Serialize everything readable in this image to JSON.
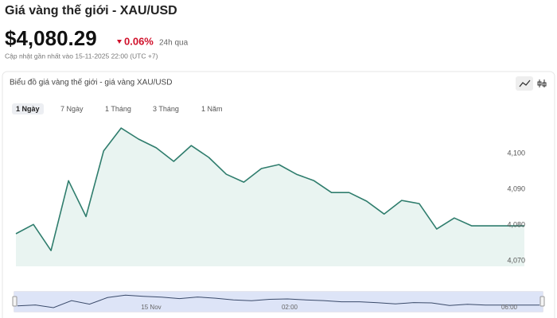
{
  "header": {
    "title": "Giá vàng thế giới - XAU/USD",
    "price": "$4,080.29",
    "change": "0.06%",
    "change_period": "24h qua",
    "updated": "Cập nhật gần nhất vào 15-11-2025 22:00 (UTC +7)"
  },
  "panel": {
    "title": "Biểu đồ giá vàng thế giới - giá vàng XAU/USD",
    "tabs": [
      "1 Ngày",
      "7 Ngày",
      "1 Tháng",
      "3 Tháng",
      "1 Năm"
    ]
  },
  "navigator": {
    "labels": [
      "15 Nov",
      "02:00",
      "06:00"
    ]
  },
  "chart_data": {
    "type": "area",
    "categories": [
      null,
      null,
      null,
      null,
      null,
      null,
      null,
      null,
      null,
      null,
      null,
      null,
      null,
      null,
      null,
      null,
      null,
      null,
      null,
      null,
      null,
      null,
      null,
      null,
      null,
      null,
      null,
      null,
      null,
      null
    ],
    "values": [
      4077.6,
      4080.2,
      4072.9,
      4092.4,
      4082.4,
      4100.7,
      4107.1,
      4104.0,
      4101.6,
      4097.8,
      4102.2,
      4098.9,
      4094.2,
      4092.0,
      4095.8,
      4096.9,
      4094.2,
      4092.4,
      4089.1,
      4089.1,
      4086.7,
      4083.1,
      4086.9,
      4086.0,
      4078.9,
      4082.0,
      4079.8,
      4079.8,
      4079.8,
      4079.8
    ],
    "color": "#2f7d6d",
    "ylim": [
      4068.5,
      4110
    ],
    "yticks": [
      {
        "value": 4070,
        "label": "4,070"
      },
      {
        "value": 4080,
        "label": "4,080"
      },
      {
        "value": 4090,
        "label": "4,090"
      },
      {
        "value": 4100,
        "label": "4,100"
      }
    ],
    "grid": false
  }
}
